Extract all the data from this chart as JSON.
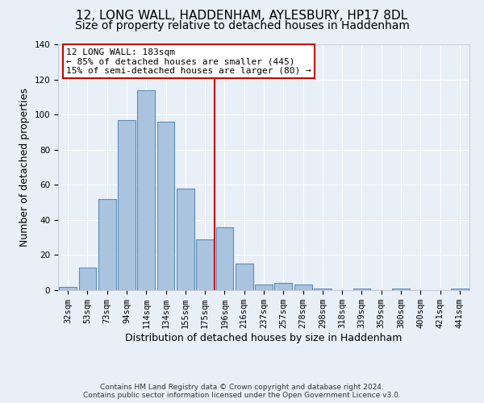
{
  "title": "12, LONG WALL, HADDENHAM, AYLESBURY, HP17 8DL",
  "subtitle": "Size of property relative to detached houses in Haddenham",
  "xlabel": "Distribution of detached houses by size in Haddenham",
  "ylabel": "Number of detached properties",
  "footer_line1": "Contains HM Land Registry data © Crown copyright and database right 2024.",
  "footer_line2": "Contains public sector information licensed under the Open Government Licence v3.0.",
  "categories": [
    "32sqm",
    "53sqm",
    "73sqm",
    "94sqm",
    "114sqm",
    "134sqm",
    "155sqm",
    "175sqm",
    "196sqm",
    "216sqm",
    "237sqm",
    "257sqm",
    "278sqm",
    "298sqm",
    "318sqm",
    "339sqm",
    "359sqm",
    "380sqm",
    "400sqm",
    "421sqm",
    "441sqm"
  ],
  "values": [
    2,
    13,
    52,
    97,
    114,
    96,
    58,
    29,
    36,
    15,
    3,
    4,
    3,
    1,
    0,
    1,
    0,
    1,
    0,
    0,
    1
  ],
  "bar_color": "#aac4e0",
  "bar_edge_color": "#5b8db8",
  "vline_color": "#cc0000",
  "annotation_text": "12 LONG WALL: 183sqm\n← 85% of detached houses are smaller (445)\n15% of semi-detached houses are larger (80) →",
  "annotation_box_color": "#ffffff",
  "annotation_box_edge_color": "#cc0000",
  "ylim": [
    0,
    140
  ],
  "yticks": [
    0,
    20,
    40,
    60,
    80,
    100,
    120,
    140
  ],
  "bg_color": "#e8eff7",
  "grid_color": "#ffffff",
  "title_fontsize": 11,
  "subtitle_fontsize": 10,
  "ylabel_fontsize": 9,
  "xlabel_fontsize": 9,
  "tick_fontsize": 7.5,
  "footer_fontsize": 6.5
}
